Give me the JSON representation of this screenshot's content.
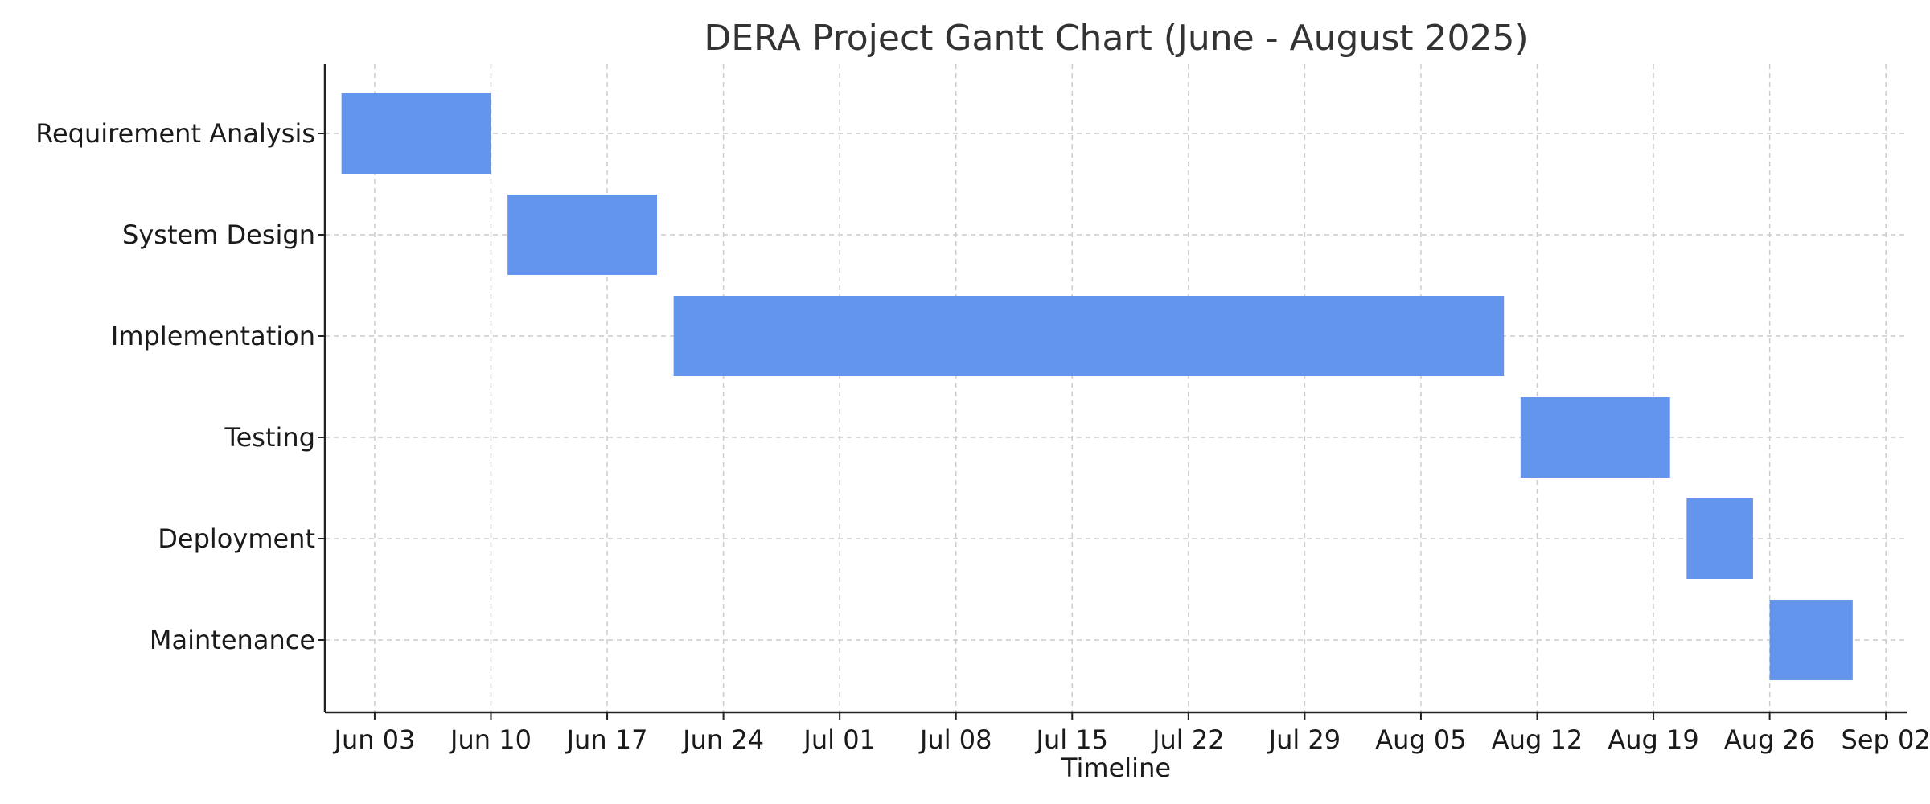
{
  "chart_data": {
    "type": "gantt",
    "title": "DERA Project Gantt Chart (June - August 2025)",
    "xlabel": "Timeline",
    "ylabel": "",
    "x_axis_type": "date",
    "xlim": [
      "2025-05-31",
      "2025-09-02"
    ],
    "x_ticks": [
      "2025-06-03",
      "2025-06-10",
      "2025-06-17",
      "2025-06-24",
      "2025-07-01",
      "2025-07-08",
      "2025-07-15",
      "2025-07-22",
      "2025-07-29",
      "2025-08-05",
      "2025-08-12",
      "2025-08-19",
      "2025-08-26",
      "2025-09-02"
    ],
    "x_tick_labels": [
      "Jun 03",
      "Jun 10",
      "Jun 17",
      "Jun 24",
      "Jul 01",
      "Jul 08",
      "Jul 15",
      "Jul 22",
      "Jul 29",
      "Aug 05",
      "Aug 12",
      "Aug 19",
      "Aug 26",
      "Sep 02"
    ],
    "grid": true,
    "bar_color": "#6495ED",
    "tasks": [
      {
        "name": "Requirement Analysis",
        "start": "2025-06-01",
        "end": "2025-06-10"
      },
      {
        "name": "System Design",
        "start": "2025-06-11",
        "end": "2025-06-20"
      },
      {
        "name": "Implementation",
        "start": "2025-06-21",
        "end": "2025-08-10"
      },
      {
        "name": "Testing",
        "start": "2025-08-11",
        "end": "2025-08-20"
      },
      {
        "name": "Deployment",
        "start": "2025-08-21",
        "end": "2025-08-25"
      },
      {
        "name": "Maintenance",
        "start": "2025-08-26",
        "end": "2025-08-31"
      }
    ]
  }
}
